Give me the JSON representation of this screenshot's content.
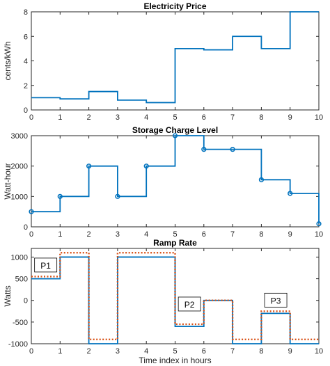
{
  "chart_data": [
    {
      "type": "line",
      "title": "Electricity Price",
      "xlabel": "",
      "ylabel": "cents/kWh",
      "xlim": [
        0,
        10
      ],
      "ylim": [
        0,
        8
      ],
      "xticks": [
        0,
        1,
        2,
        3,
        4,
        5,
        6,
        7,
        8,
        9,
        10
      ],
      "yticks": [
        0,
        2,
        4,
        6,
        8
      ],
      "grid": false,
      "series": [
        {
          "color": "#0072bd",
          "style": "stairs",
          "x": [
            0,
            1,
            2,
            3,
            4,
            5,
            6,
            7,
            8,
            9
          ],
          "values": [
            1.0,
            0.9,
            1.5,
            0.8,
            0.6,
            5.0,
            4.9,
            6.0,
            5.0,
            8.0
          ]
        }
      ]
    },
    {
      "type": "line",
      "title": "Storage Charge Level",
      "xlabel": "",
      "ylabel": "Watt-hour",
      "xlim": [
        0,
        10
      ],
      "ylim": [
        0,
        3000
      ],
      "xticks": [
        0,
        1,
        2,
        3,
        4,
        5,
        6,
        7,
        8,
        9,
        10
      ],
      "yticks": [
        0,
        1000,
        2000,
        3000
      ],
      "grid": false,
      "series": [
        {
          "color": "#0072bd",
          "style": "stairs-markers",
          "x": [
            0,
            1,
            2,
            3,
            4,
            5,
            6,
            7,
            8,
            9,
            10
          ],
          "values": [
            500,
            1000,
            2000,
            1000,
            2000,
            3000,
            2550,
            2550,
            1550,
            1100,
            100
          ]
        }
      ]
    },
    {
      "type": "line",
      "title": "Ramp Rate",
      "xlabel": "Time index in hours",
      "ylabel": "Watts",
      "xlim": [
        0,
        10
      ],
      "ylim": [
        -1000,
        1200
      ],
      "xticks": [
        0,
        1,
        2,
        3,
        4,
        5,
        6,
        7,
        8,
        9,
        10
      ],
      "yticks": [
        -1000,
        -500,
        0,
        500,
        1000
      ],
      "grid": false,
      "series": [
        {
          "color": "#0072bd",
          "style": "stairs",
          "x": [
            0,
            1,
            2,
            3,
            4,
            5,
            6,
            7,
            8,
            9
          ],
          "values": [
            500,
            1000,
            -1000,
            1000,
            1000,
            -600,
            0,
            -1000,
            -300,
            -1000
          ]
        },
        {
          "color": "#d95319",
          "style": "stairs-dotted",
          "x": [
            0,
            1,
            2,
            3,
            4,
            5,
            6,
            7,
            8,
            9
          ],
          "values": [
            550,
            1100,
            -900,
            1100,
            1100,
            -550,
            0,
            -900,
            -250,
            -900
          ]
        }
      ],
      "annotations": [
        {
          "text": "P1",
          "x": 0.5,
          "y": 800
        },
        {
          "text": "P2",
          "x": 5.5,
          "y": -100
        },
        {
          "text": "P3",
          "x": 8.5,
          "y": -10
        }
      ]
    }
  ]
}
